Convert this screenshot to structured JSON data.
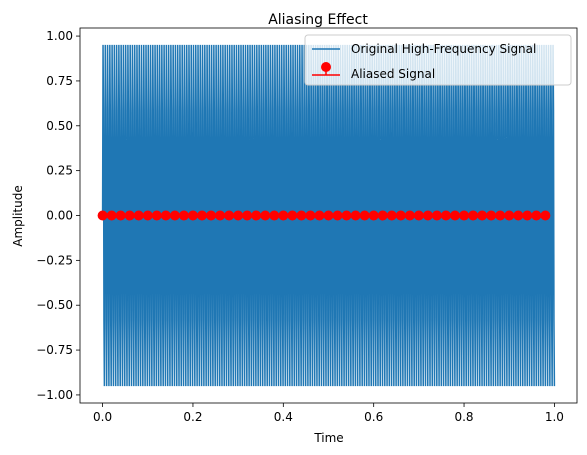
{
  "chart_data": {
    "type": "line",
    "title": "Aliasing Effect",
    "xlabel": "Time",
    "ylabel": "Amplitude",
    "xlim": [
      -0.05,
      1.05
    ],
    "ylim": [
      -1.045,
      1.045
    ],
    "xticks": [
      0.0,
      0.2,
      0.4,
      0.6,
      0.8,
      1.0
    ],
    "xtick_labels": [
      "0.0",
      "0.2",
      "0.4",
      "0.6",
      "0.8",
      "1.0"
    ],
    "yticks": [
      -1.0,
      -0.75,
      -0.5,
      -0.25,
      0.0,
      0.25,
      0.5,
      0.75,
      1.0
    ],
    "ytick_labels": [
      "−1.00",
      "−0.75",
      "−0.50",
      "−0.25",
      "0.00",
      "0.25",
      "0.50",
      "0.75",
      "1.00"
    ],
    "grid": false,
    "legend_position": "top-right",
    "series": [
      {
        "name": "Original High-Frequency Signal",
        "kind": "line",
        "color": "#1f77b4",
        "x_range": [
          0.0,
          1.0
        ],
        "samples": 1000,
        "period_samples": 10,
        "outer_amplitude": 0.951,
        "inner_amplitude": 0.588
      },
      {
        "name": "Aliased Signal",
        "kind": "stem",
        "color": "#ff0000",
        "x_start": 0.0,
        "x_end": 0.98,
        "x_step": 0.02,
        "value": 0.0
      }
    ]
  }
}
